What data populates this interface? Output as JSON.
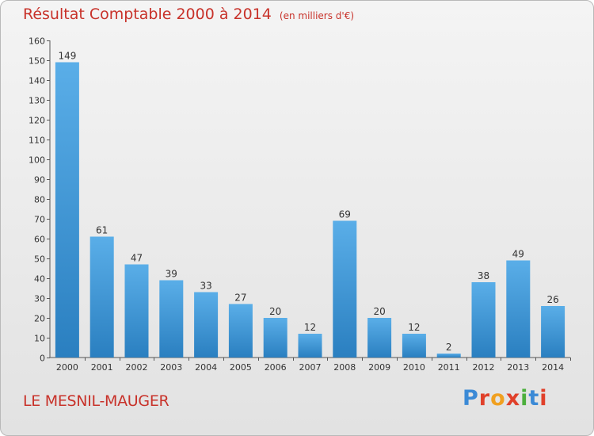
{
  "header": {
    "title": "Résultat Comptable 2000 à 2014",
    "subtitle": "(en milliers d'€)"
  },
  "footer": {
    "place": "LE MESNIL-MAUGER",
    "logo": "Proxiti"
  },
  "colors": {
    "accent": "#c8322a",
    "bar_light": "#5aaee8",
    "bar_dark": "#2a7fc0",
    "logo_letters": [
      "#3b8ad6",
      "#e0402a",
      "#f0a020",
      "#e0402a",
      "#4caf3c",
      "#3b8ad6",
      "#e0402a"
    ]
  },
  "chart_data": {
    "type": "bar",
    "title": "Résultat Comptable 2000 à 2014",
    "subtitle": "(en milliers d'€)",
    "xlabel": "",
    "ylabel": "",
    "categories": [
      "2000",
      "2001",
      "2002",
      "2003",
      "2004",
      "2005",
      "2006",
      "2007",
      "2008",
      "2009",
      "2010",
      "2011",
      "2012",
      "2013",
      "2014"
    ],
    "values": [
      149,
      61,
      47,
      39,
      33,
      27,
      20,
      12,
      69,
      20,
      12,
      2,
      38,
      49,
      26
    ],
    "ylim": [
      0,
      160
    ],
    "yticks": [
      0,
      10,
      20,
      30,
      40,
      50,
      60,
      70,
      80,
      90,
      100,
      110,
      120,
      130,
      140,
      150,
      160
    ],
    "grid": false,
    "legend": "none",
    "data_labels": true
  }
}
